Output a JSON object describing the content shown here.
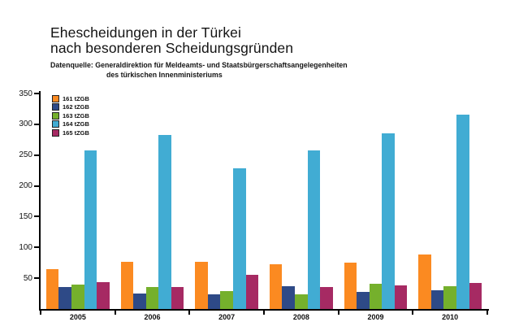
{
  "title": {
    "line1": "Ehescheidungen in der Türkei",
    "line2": "nach besonderen Scheidungsgründen"
  },
  "subtitle": {
    "line1": "Datenquelle: Generaldirektion für Meldeamts- und Staatsbürgerschaftsangelegenheiten",
    "line2": "des türkischen Innenministeriums"
  },
  "chart_data": {
    "type": "bar",
    "title": "Ehescheidungen in der Türkei nach besonderen Scheidungsgründen",
    "subtitle": "Datenquelle: Generaldirektion für Meldeamts- und Staatsbürgerschaftsangelegenheiten des türkischen Innenministeriums",
    "categories": [
      "2005",
      "2006",
      "2007",
      "2008",
      "2009",
      "2010"
    ],
    "series": [
      {
        "name": "161 tZGB",
        "color": "#FB8A21",
        "values": [
          65,
          77,
          76,
          72,
          75,
          89
        ]
      },
      {
        "name": "162 tZGB",
        "color": "#2E4A87",
        "values": [
          36,
          25,
          24,
          37,
          28,
          31
        ]
      },
      {
        "name": "163 tZGB",
        "color": "#75B02C",
        "values": [
          39,
          36,
          29,
          24,
          41,
          37
        ]
      },
      {
        "name": "164 tZGB",
        "color": "#41ACD3",
        "values": [
          257,
          283,
          229,
          258,
          285,
          316
        ]
      },
      {
        "name": "165 tZGB",
        "color": "#A62A63",
        "values": [
          44,
          36,
          55,
          36,
          38,
          42
        ]
      }
    ],
    "xlabel": "",
    "ylabel": "",
    "ylim": [
      0,
      350
    ],
    "yticks": [
      50,
      100,
      150,
      200,
      250,
      300,
      350
    ],
    "grid": false,
    "legend_position": "upper-left",
    "axis_color": "#000000",
    "background_color": "#ffffff"
  }
}
